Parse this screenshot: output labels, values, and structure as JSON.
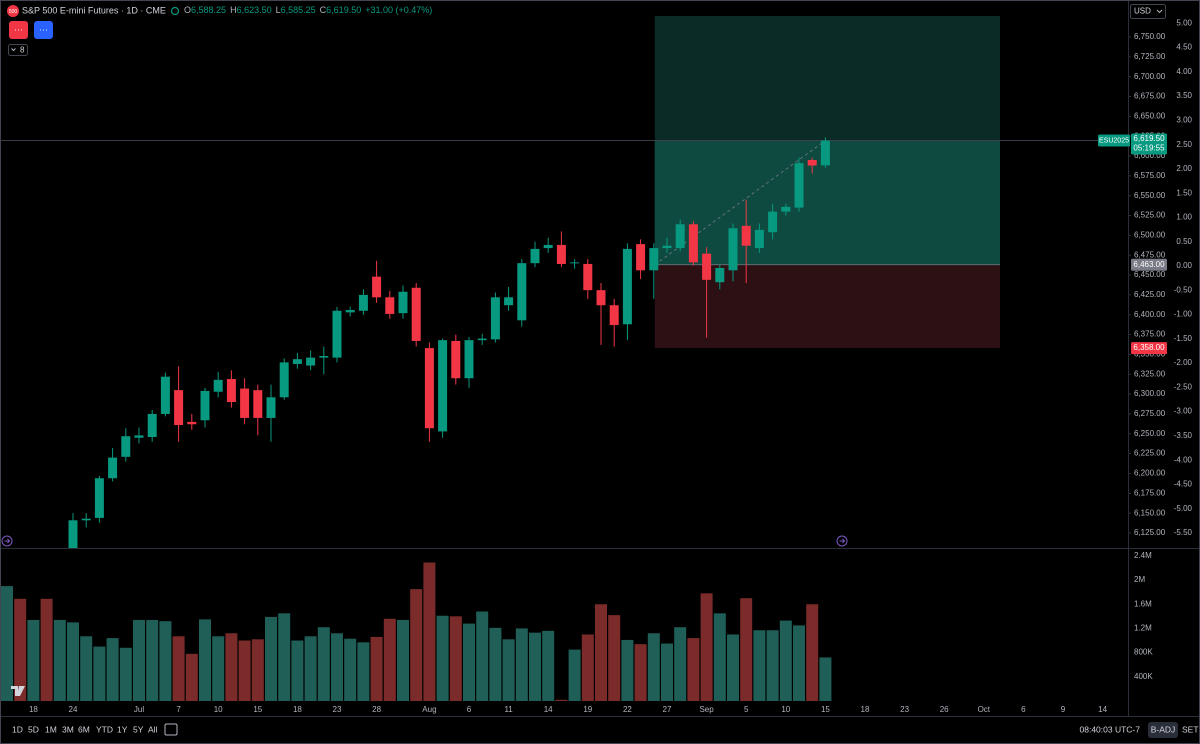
{
  "header": {
    "symbol": "S&P 500 E-mini Futures · 1D · CME",
    "icon": "500",
    "fields": [
      {
        "label": "O",
        "value": "6,588.25"
      },
      {
        "label": "H",
        "value": "6,623.50"
      },
      {
        "label": "L",
        "value": "6,585.25"
      },
      {
        "label": "C",
        "value": "6,619.50"
      }
    ],
    "change": "+31.00 (+0.47%)",
    "buttons": [
      "···",
      "···"
    ],
    "indicator_count": "8",
    "currency": "USD"
  },
  "toolbar": {
    "ranges": [
      "1D",
      "5D",
      "1M",
      "3M",
      "6M",
      "YTD",
      "1Y",
      "5Y",
      "All"
    ],
    "clock": "08:40:03 UTC-7",
    "adjust": "B-ADJ",
    "session": "SET"
  },
  "chart_data": {
    "type": "candlestick",
    "title": "S&P 500 E-mini Futures",
    "categories": [
      null,
      null,
      "18",
      null,
      null,
      "24",
      null,
      null,
      null,
      null,
      "Jul",
      null,
      null,
      "7",
      null,
      null,
      "10",
      null,
      null,
      "15",
      null,
      null,
      "18",
      null,
      null,
      "23",
      null,
      null,
      "28",
      null,
      null,
      null,
      "Aug",
      null,
      null,
      "6",
      null,
      null,
      "11",
      null,
      null,
      "14",
      null,
      null,
      "19",
      null,
      null,
      "22",
      null,
      null,
      "27",
      null,
      null,
      "Sep",
      null,
      null,
      "5",
      null,
      null,
      "10",
      null,
      null,
      "15",
      null,
      null,
      "18",
      null,
      null,
      "23",
      null,
      null,
      "26",
      null,
      null,
      "Oct",
      null,
      null,
      "6",
      null,
      null,
      "9",
      null,
      null,
      "14"
    ],
    "open": [
      6060,
      6090,
      6075,
      6085,
      6070,
      6100,
      6141,
      6144,
      6194,
      6221,
      6245,
      6246,
      6275,
      6305,
      6265,
      6267,
      6303,
      6319,
      6307,
      6305,
      6270,
      6296,
      6338,
      6336,
      6346,
      6346,
      6403,
      6405,
      6448,
      6422,
      6402,
      6434,
      6358,
      6253,
      6367,
      6320,
      6368,
      6369,
      6412,
      6393,
      6465,
      6484,
      6488,
      6465,
      6464,
      6431,
      6412,
      6388,
      6489,
      6456,
      6484,
      6484,
      6514,
      6477,
      6441,
      6456,
      6512,
      6484,
      6504,
      6530,
      6535,
      6595,
      6588.25,
      null,
      null,
      null,
      null,
      null,
      null,
      null,
      null,
      null,
      null,
      null,
      null,
      null,
      null,
      null,
      null,
      null,
      null,
      null,
      null,
      null
    ],
    "high": [
      6100,
      6098,
      6092,
      6090,
      6105,
      6150,
      6150,
      6197,
      6232,
      6257,
      6258,
      6280,
      6327,
      6335,
      6275,
      6308,
      6328,
      6330,
      6320,
      6312,
      6312,
      6345,
      6352,
      6355,
      6360,
      6410,
      6410,
      6432,
      6468,
      6430,
      6437,
      6440,
      6365,
      6370,
      6375,
      6372,
      6376,
      6428,
      6435,
      6470,
      6492,
      6497,
      6505,
      6470,
      6470,
      6440,
      6420,
      6490,
      6495,
      6490,
      6497,
      6520,
      6518,
      6485,
      6463,
      6515,
      6545,
      6515,
      6540,
      6540,
      6598,
      6598,
      6623.5,
      null,
      null,
      null,
      null,
      null,
      null,
      null,
      null,
      null,
      null,
      null,
      null,
      null,
      null,
      null,
      null,
      null,
      null,
      null,
      null,
      null
    ],
    "low": [
      6050,
      6065,
      6068,
      6062,
      6065,
      6090,
      6132,
      6138,
      6190,
      6215,
      6238,
      6240,
      6272,
      6240,
      6255,
      6258,
      6296,
      6283,
      6262,
      6248,
      6240,
      6293,
      6332,
      6330,
      6325,
      6340,
      6398,
      6400,
      6415,
      6395,
      6395,
      6360,
      6240,
      6245,
      6312,
      6308,
      6362,
      6365,
      6405,
      6385,
      6460,
      6478,
      6460,
      6458,
      6420,
      6362,
      6360,
      6368,
      6445,
      6420,
      6478,
      6480,
      6462,
      6371,
      6432,
      6442,
      6440,
      6478,
      6495,
      6525,
      6530,
      6578,
      6585.25,
      null,
      null,
      null,
      null,
      null,
      null,
      null,
      null,
      null,
      null,
      null,
      null,
      null,
      null,
      null,
      null,
      null,
      null,
      null,
      null,
      null
    ],
    "close": [
      6090,
      6075,
      6085,
      6070,
      6100,
      6141,
      6143,
      6194,
      6220,
      6247,
      6248,
      6275,
      6322,
      6261,
      6262,
      6304,
      6318,
      6290,
      6270,
      6270,
      6296,
      6340,
      6344,
      6346,
      6348,
      6405,
      6406,
      6425,
      6422,
      6401,
      6429,
      6367,
      6257,
      6368,
      6320,
      6368,
      6370,
      6422,
      6422,
      6465,
      6483,
      6488,
      6464,
      6466,
      6431,
      6412,
      6387,
      6483,
      6456,
      6484,
      6487,
      6514,
      6466,
      6444,
      6459,
      6509,
      6487,
      6507,
      6530,
      6536,
      6591,
      6588,
      6619.5,
      null,
      null,
      null,
      null,
      null,
      null,
      null,
      null,
      null,
      null,
      null,
      null,
      null,
      null,
      null,
      null,
      null,
      null,
      null,
      null,
      null
    ],
    "up_color": "#089981",
    "down_color": "#f23645",
    "ylim": [
      6106.1,
      6796.6
    ],
    "yticks": [
      {
        "value": 6750,
        "label": "6,750.00"
      },
      {
        "value": 6725,
        "label": "6,725.00"
      },
      {
        "value": 6700,
        "label": "6,700.00"
      },
      {
        "value": 6675,
        "label": "6,675.00"
      },
      {
        "value": 6650,
        "label": "6,650.00"
      },
      {
        "value": 6625,
        "label": "6,625.00"
      },
      {
        "value": 6600,
        "label": "6,600.00"
      },
      {
        "value": 6575,
        "label": "6,575.00"
      },
      {
        "value": 6550,
        "label": "6,550.00"
      },
      {
        "value": 6525,
        "label": "6,525.00"
      },
      {
        "value": 6500,
        "label": "6,500.00"
      },
      {
        "value": 6475,
        "label": "6,475.00"
      },
      {
        "value": 6450,
        "label": "6,450.00"
      },
      {
        "value": 6425,
        "label": "6,425.00"
      },
      {
        "value": 6400,
        "label": "6,400.00"
      },
      {
        "value": 6375,
        "label": "6,375.00"
      },
      {
        "value": 6350,
        "label": "6,350.00"
      },
      {
        "value": 6325,
        "label": "6,325.00"
      },
      {
        "value": 6300,
        "label": "6,300.00"
      },
      {
        "value": 6275,
        "label": "6,275.00"
      },
      {
        "value": 6250,
        "label": "6,250.00"
      },
      {
        "value": 6225,
        "label": "6,225.00"
      },
      {
        "value": 6200,
        "label": "6,200.00"
      },
      {
        "value": 6175,
        "label": "6,175.00"
      },
      {
        "value": 6150,
        "label": "6,150.00"
      },
      {
        "value": 6125,
        "label": "6,125.00"
      }
    ],
    "y2lim": [
      -5.81,
      5.48
    ],
    "y2ticks": [
      {
        "value": 5,
        "label": "5.00"
      },
      {
        "value": 4.5,
        "label": "4.50"
      },
      {
        "value": 4,
        "label": "4.00"
      },
      {
        "value": 3.5,
        "label": "3.50"
      },
      {
        "value": 3,
        "label": "3.00"
      },
      {
        "value": 2.5,
        "label": "2.50"
      },
      {
        "value": 2,
        "label": "2.00"
      },
      {
        "value": 1.5,
        "label": "1.50"
      },
      {
        "value": 1,
        "label": "1.00"
      },
      {
        "value": 0.5,
        "label": "0.50"
      },
      {
        "value": 0,
        "label": "0.00"
      },
      {
        "value": -0.5,
        "label": "-0.50"
      },
      {
        "value": -1,
        "label": "-1.00"
      },
      {
        "value": -1.5,
        "label": "-1.50"
      },
      {
        "value": -2,
        "label": "-2.00"
      },
      {
        "value": -2.5,
        "label": "-2.50"
      },
      {
        "value": -3,
        "label": "-3.00"
      },
      {
        "value": -3.5,
        "label": "-3.50"
      },
      {
        "value": -4,
        "label": "-4.00"
      },
      {
        "value": -4.5,
        "label": "-4.50"
      },
      {
        "value": -5,
        "label": "-5.00"
      },
      {
        "value": -5.5,
        "label": "-5.50"
      }
    ],
    "last_price": {
      "symbol": "ESU2025",
      "value": 6619.5,
      "label": "6,619.50",
      "countdown": "05:19:55",
      "color": "#089981"
    },
    "position": {
      "entry": {
        "value": 6463,
        "label": "6,463.00"
      },
      "stop": {
        "value": 6358,
        "label": "6,358.00"
      },
      "target": 6776.5,
      "profit_color": "#0b2b26",
      "progress_color": "#0e4a40",
      "loss_color": "#2c1013"
    },
    "volume": {
      "values": [
        1900000,
        1690000,
        1340000,
        1690000,
        1340000,
        1300000,
        1070000,
        900000,
        1040000,
        880000,
        1340000,
        1340000,
        1320000,
        1070000,
        780000,
        1350000,
        1070000,
        1120000,
        1000000,
        1020000,
        1390000,
        1450000,
        1000000,
        1070000,
        1220000,
        1120000,
        1030000,
        970000,
        1060000,
        1360000,
        1340000,
        1850000,
        2290000,
        1410000,
        1400000,
        1280000,
        1480000,
        1210000,
        1020000,
        1200000,
        1130000,
        1160000,
        20000,
        850000,
        1100000,
        1600000,
        1420000,
        1010000,
        940000,
        1120000,
        950000,
        1220000,
        1040000,
        1780000,
        1450000,
        1100000,
        1700000,
        1170000,
        1170000,
        1330000,
        1250000,
        1600000,
        720000,
        null,
        null,
        null,
        null,
        null,
        null,
        null,
        null,
        null,
        null,
        null,
        null,
        null,
        null,
        null,
        null,
        null,
        null,
        null,
        null,
        null
      ],
      "up_color": "#1f5f58",
      "down_color": "#7c2b2b",
      "ylim": [
        0,
        2530000
      ],
      "yticks": [
        {
          "value": 2400000,
          "label": "2.4M"
        },
        {
          "value": 2000000,
          "label": "2M"
        },
        {
          "value": 1600000,
          "label": "1.6M"
        },
        {
          "value": 1200000,
          "label": "1.2M"
        },
        {
          "value": 800000,
          "label": "800K"
        },
        {
          "value": 400000,
          "label": "400K"
        }
      ]
    }
  }
}
